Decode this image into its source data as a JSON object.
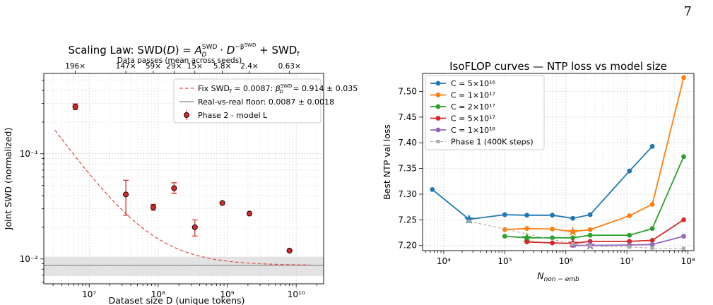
{
  "page": {
    "number": "7"
  },
  "chart_data": [
    {
      "type": "scatter",
      "title": "Scaling Law: SWD(D) = A_D^SWD · D^(−β_D^SWD) + SWD_f",
      "title_parts": {
        "main": "Scaling Law: SWD(",
        "D": "D",
        "close_eq": ") = ",
        "A": "A",
        "A_sup": "SWD",
        "A_sub": "D",
        "dot": " · ",
        "D2": "D",
        "exp_minus": "−",
        "beta": "β",
        "beta_sup": "SWD",
        "beta_sub": "D",
        "plus": " + SWD",
        "f": "f"
      },
      "top_axis_label": "Data passes (mean across seeds)",
      "top_ticks": [
        {
          "x": 6300000.0,
          "label": "196×"
        },
        {
          "x": 34000000.0,
          "label": "147×"
        },
        {
          "x": 85000000.0,
          "label": "59×"
        },
        {
          "x": 170000000.0,
          "label": "29×"
        },
        {
          "x": 340000000.0,
          "label": "15×"
        },
        {
          "x": 850000000.0,
          "label": "5.8×"
        },
        {
          "x": 2100000000.0,
          "label": "2.4×"
        },
        {
          "x": 8000000000.0,
          "label": "0.63×"
        }
      ],
      "xlabel": "Dataset size D (unique tokens)",
      "ylabel": "Joint SWD (normalized)",
      "x_scale": "log",
      "y_scale": "log",
      "xlim": [
        2200000.0,
        25000000000.0
      ],
      "ylim": [
        0.0058,
        0.58
      ],
      "x_ticks": [
        {
          "v": 10000000.0,
          "label": "10⁷"
        },
        {
          "v": 100000000.0,
          "label": "10⁸"
        },
        {
          "v": 1000000000.0,
          "label": "10⁹"
        },
        {
          "v": 10000000000.0,
          "label": "10¹⁰"
        }
      ],
      "y_ticks": [
        {
          "v": 0.1,
          "label": "10⁻¹"
        },
        {
          "v": 0.01,
          "label": "10⁻²"
        }
      ],
      "grid": true,
      "floor": {
        "name": "Real-vs-real floor: 0.0087 ± 0.0018",
        "value": 0.0087,
        "band": [
          0.0069,
          0.0105
        ],
        "color": "#999999"
      },
      "fit": {
        "name": "Fix SWD_f = 0.0087: β_D^SWD = 0.914 ± 0.035",
        "legend_parts": {
          "a": "Fix SWD",
          "a_sub": "f",
          "b": " = 0.0087: ",
          "beta": "β",
          "beta_sup": "SWD",
          "beta_sub": "D",
          "c": " = 0.914 ± 0.035"
        },
        "A": 140000.0,
        "beta": 0.914,
        "floor": 0.0087,
        "x_range": [
          3200000.0,
          16000000000.0
        ],
        "color": "#e05555",
        "style": "dashed"
      },
      "series": [
        {
          "name": "Phase 2 - model L",
          "color": "#d62728",
          "points": [
            {
              "x": 6300000.0,
              "y": 0.28,
              "lo": 0.262,
              "hi": 0.298
            },
            {
              "x": 34000000.0,
              "y": 0.041,
              "lo": 0.026,
              "hi": 0.056
            },
            {
              "x": 85000000.0,
              "y": 0.031,
              "lo": 0.029,
              "hi": 0.033
            },
            {
              "x": 170000000.0,
              "y": 0.047,
              "lo": 0.042,
              "hi": 0.053
            },
            {
              "x": 340000000.0,
              "y": 0.02,
              "lo": 0.0165,
              "hi": 0.0235
            },
            {
              "x": 850000000.0,
              "y": 0.034,
              "lo": 0.034,
              "hi": 0.034
            },
            {
              "x": 2100000000.0,
              "y": 0.027,
              "lo": 0.027,
              "hi": 0.027
            },
            {
              "x": 8000000000.0,
              "y": 0.012,
              "lo": 0.012,
              "hi": 0.012
            }
          ]
        }
      ],
      "legend_position": "upper right"
    },
    {
      "type": "line",
      "title": "IsoFLOP curves — NTP loss vs model size",
      "xlabel": "N_non−emb",
      "xlabel_parts": {
        "N": "N",
        "sub": "non − emb"
      },
      "ylabel": "Best NTP val loss",
      "x_scale": "log",
      "xlim": [
        4500.0,
        125000000.0
      ],
      "ylim": [
        7.19,
        7.535
      ],
      "x_ticks": [
        {
          "v": 10000.0,
          "label": "10⁴"
        },
        {
          "v": 100000.0,
          "label": "10⁵"
        },
        {
          "v": 1000000.0,
          "label": "10⁶"
        },
        {
          "v": 10000000.0,
          "label": "10⁷"
        },
        {
          "v": 100000000.0,
          "label": "10⁸"
        }
      ],
      "y_ticks": [
        7.2,
        7.25,
        7.3,
        7.35,
        7.4,
        7.45,
        7.5
      ],
      "grid": true,
      "series": [
        {
          "name": "C = 5×10¹⁶",
          "color": "#1f77b4",
          "x": [
            6500.0,
            26000.0,
            100000.0,
            230000.0,
            600000.0,
            1300000.0,
            2500000.0,
            11000000.0,
            26000000.0
          ],
          "y": [
            7.309,
            7.251,
            7.26,
            7.259,
            7.259,
            7.253,
            7.26,
            7.345,
            7.393
          ],
          "optimum": {
            "x": 26000.0,
            "y": 7.251
          }
        },
        {
          "name": "C = 1×10¹⁷",
          "color": "#ff7f0e",
          "x": [
            100000.0,
            230000.0,
            600000.0,
            1300000.0,
            2500000.0,
            11000000.0,
            26000000.0,
            85000000.0
          ],
          "y": [
            7.231,
            7.233,
            7.232,
            7.227,
            7.231,
            7.258,
            7.28,
            7.527
          ],
          "optimum": {
            "x": 1300000.0,
            "y": 7.227
          }
        },
        {
          "name": "C = 2×10¹⁷",
          "color": "#2ca02c",
          "x": [
            100000.0,
            230000.0,
            600000.0,
            1300000.0,
            2500000.0,
            11000000.0,
            26000000.0,
            85000000.0
          ],
          "y": [
            7.218,
            7.215,
            7.215,
            7.215,
            7.22,
            7.22,
            7.233,
            7.373
          ],
          "optimum": {
            "x": 230000.0,
            "y": 7.215
          }
        },
        {
          "name": "C = 5×10¹⁷",
          "color": "#d62728",
          "x": [
            230000.0,
            600000.0,
            1300000.0,
            2500000.0,
            11000000.0,
            26000000.0,
            85000000.0
          ],
          "y": [
            7.207,
            7.205,
            7.204,
            7.208,
            7.208,
            7.21,
            7.25
          ],
          "optimum": {
            "x": 1300000.0,
            "y": 7.204
          }
        },
        {
          "name": "C = 1×10¹⁸",
          "color": "#9467bd",
          "x": [
            1300000.0,
            2500000.0,
            11000000.0,
            26000000.0,
            85000000.0
          ],
          "y": [
            7.2,
            7.2,
            7.201,
            7.202,
            7.218
          ],
          "optimum": {
            "x": 2500000.0,
            "y": 7.2
          }
        },
        {
          "name": "Phase 1 (400K steps)",
          "color": "#aaaaaa",
          "style": "dashed",
          "marker": "square",
          "x": [
            26000.0,
            1300000.0,
            2500000.0,
            11000000.0,
            26000000.0,
            85000000.0
          ],
          "y": [
            7.247,
            7.203,
            7.199,
            7.197,
            7.195,
            7.194
          ]
        }
      ],
      "legend_position": "upper left"
    }
  ]
}
